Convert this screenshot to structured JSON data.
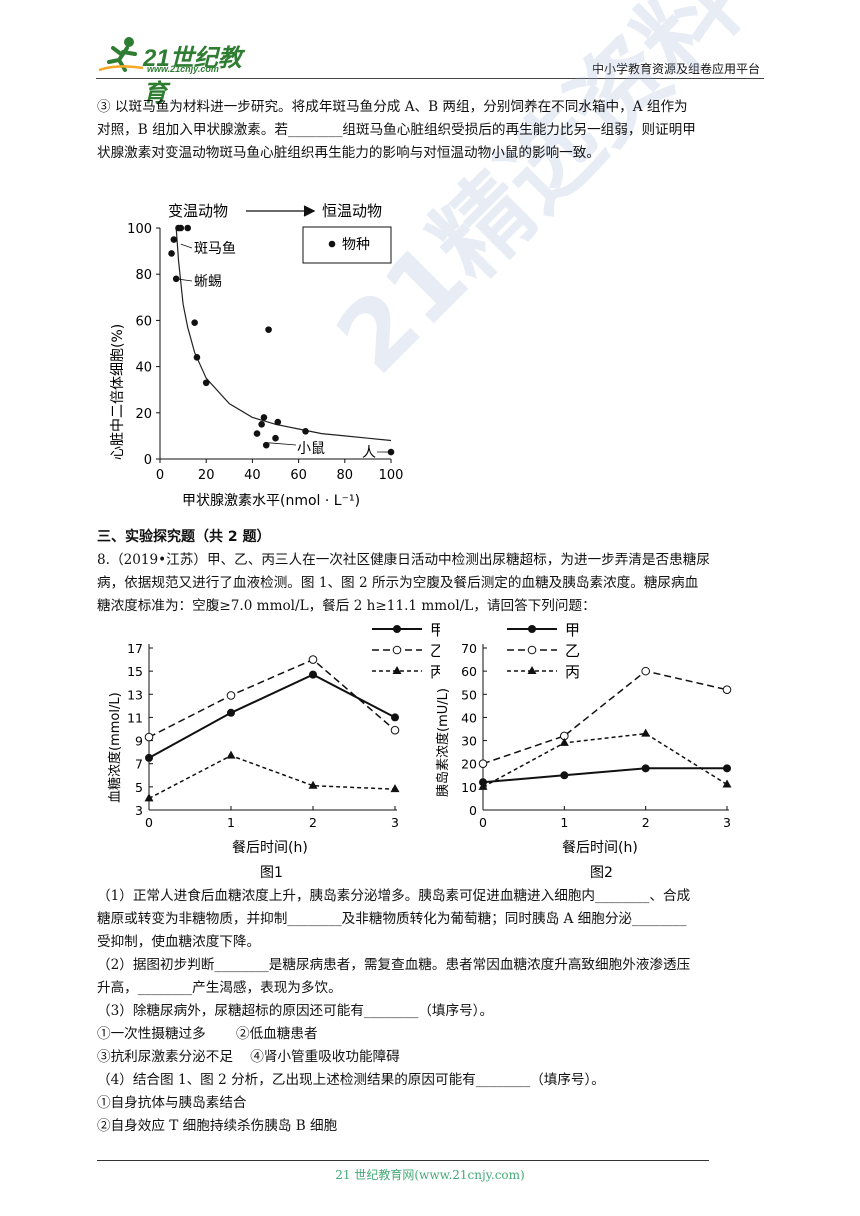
{
  "header": {
    "logo_main": "21世纪教育",
    "logo_url": "www.21cnjy.com",
    "platform": "中小学教育资源及组卷应用平台"
  },
  "watermark": "21精选资料",
  "intro": {
    "p1": "③ 以斑马鱼为材料进一步研究。将成年斑马鱼分成 A、B 两组，分别饲养在不同水箱中，A 组作为",
    "p2": "对照，B 组加入甲状腺激素。若________组斑马鱼心脏组织受损后的再生能力比另一组弱，则证明甲",
    "p3": "状腺激素对变温动物斑马鱼心脏组织再生能力的影响与对恒温动物小鼠的影响一致。"
  },
  "scatter": {
    "top_left": "变温动物",
    "top_right": "恒温动物",
    "legend": "物种",
    "label_zebrafish": "斑马鱼",
    "label_lizard": "蜥蜴",
    "label_mouse": "小鼠",
    "label_human": "人",
    "ylabel": "心脏中二倍体细胞(%)",
    "xlabel": "甲状腺激素水平(nmol · L⁻¹)"
  },
  "section3": "三、实验探究题（共 2 题）",
  "q8": {
    "l1": "8.（2019•江苏）甲、乙、丙三人在一次社区健康日活动中检测出尿糖超标，为进一步弄清是否患糖尿",
    "l2": "病，依据规范又进行了血液检测。图 1、图 2 所示为空腹及餐后测定的血糖及胰岛素浓度。糖尿病血",
    "l3": "糖浓度标准为：空腹≥7.0 mmol/L，餐后 2 h≥11.1 mmol/L，请回答下列问题："
  },
  "fig1": {
    "title": "图1",
    "ylabel": "血糖浓度(mmol/L)",
    "xlabel": "餐后时间(h)"
  },
  "fig2": {
    "title": "图2",
    "ylabel": "胰岛素浓度(mU/L)",
    "xlabel": "餐后时间(h)"
  },
  "questions": {
    "q1a": "（1）正常人进食后血糖浓度上升，胰岛素分泌增多。胰岛素可促进血糖进入细胞内________、合成",
    "q1b": "糖原或转变为非糖物质，并抑制________及非糖物质转化为葡萄糖；同时胰岛 A 细胞分泌________",
    "q1c": "受抑制，使血糖浓度下降。",
    "q2a": "（2）据图初步判断________是糖尿病患者，需复查血糖。患者常因血糖浓度升高致细胞外液渗透压",
    "q2b": "升高，________产生渴感，表现为多饮。",
    "q3": "（3）除糖尿病外，尿糖超标的原因还可能有________（填序号）。",
    "q3o1": "①一次性摄糖过多       ②低血糖患者",
    "q3o2": "③抗利尿激素分泌不足    ④肾小管重吸收功能障碍",
    "q4": "（4）结合图 1、图 2 分析，乙出现上述检测结果的原因可能有________（填序号）。",
    "q4o1": "①自身抗体与胰岛素结合",
    "q4o2": "②自身效应 T 细胞持续杀伤胰岛 B 细胞"
  },
  "footer": "21 世纪教育网(www.21cnjy.com)",
  "chart_data": [
    {
      "type": "scatter",
      "xlabel": "甲状腺激素水平(nmol · L⁻¹)",
      "ylabel": "心脏中二倍体细胞(%)",
      "xlim": [
        0,
        100
      ],
      "ylim": [
        0,
        100
      ],
      "xticks": [
        0,
        20,
        40,
        60,
        80,
        100
      ],
      "yticks": [
        0,
        20,
        40,
        60,
        80,
        100
      ],
      "series": [
        {
          "name": "物种",
          "points": [
            [
              5,
              89
            ],
            [
              6,
              95
            ],
            [
              7,
              78
            ],
            [
              8,
              100
            ],
            [
              9,
              100
            ],
            [
              12,
              100
            ],
            [
              15,
              59
            ],
            [
              16,
              44
            ],
            [
              20,
              33
            ],
            [
              42,
              11
            ],
            [
              44,
              15
            ],
            [
              45,
              18
            ],
            [
              47,
              56
            ],
            [
              46,
              6
            ],
            [
              50,
              9
            ],
            [
              51,
              16
            ],
            [
              63,
              12
            ],
            [
              100,
              3
            ]
          ]
        }
      ],
      "curve": [
        [
          7,
          100
        ],
        [
          8,
          86
        ],
        [
          10,
          67
        ],
        [
          12,
          57
        ],
        [
          15,
          46
        ],
        [
          20,
          35
        ],
        [
          30,
          24
        ],
        [
          40,
          18
        ],
        [
          50,
          15
        ],
        [
          60,
          13
        ],
        [
          70,
          11
        ],
        [
          80,
          10
        ],
        [
          90,
          9
        ],
        [
          100,
          8
        ]
      ]
    },
    {
      "type": "line",
      "title": "图1",
      "xlabel": "餐后时间(h)",
      "ylabel": "血糖浓度(mmol/L)",
      "x": [
        0,
        1,
        2,
        3
      ],
      "ylim": [
        3,
        17
      ],
      "yticks": [
        3,
        5,
        7,
        9,
        11,
        13,
        15,
        17
      ],
      "series": [
        {
          "name": "甲",
          "values": [
            7.5,
            11.4,
            14.7,
            11.0
          ]
        },
        {
          "name": "乙",
          "values": [
            9.3,
            12.9,
            16.0,
            9.9
          ]
        },
        {
          "name": "丙",
          "values": [
            4.0,
            7.7,
            5.1,
            4.8
          ]
        }
      ]
    },
    {
      "type": "line",
      "title": "图2",
      "xlabel": "餐后时间(h)",
      "ylabel": "胰岛素浓度(mU/L)",
      "x": [
        0,
        1,
        2,
        3
      ],
      "ylim": [
        0,
        70
      ],
      "yticks": [
        0,
        10,
        20,
        30,
        40,
        50,
        60,
        70
      ],
      "series": [
        {
          "name": "甲",
          "values": [
            12,
            15,
            18,
            18
          ]
        },
        {
          "name": "乙",
          "values": [
            20,
            32,
            60,
            52
          ]
        },
        {
          "name": "丙",
          "values": [
            10,
            29,
            33,
            11
          ]
        }
      ]
    }
  ]
}
